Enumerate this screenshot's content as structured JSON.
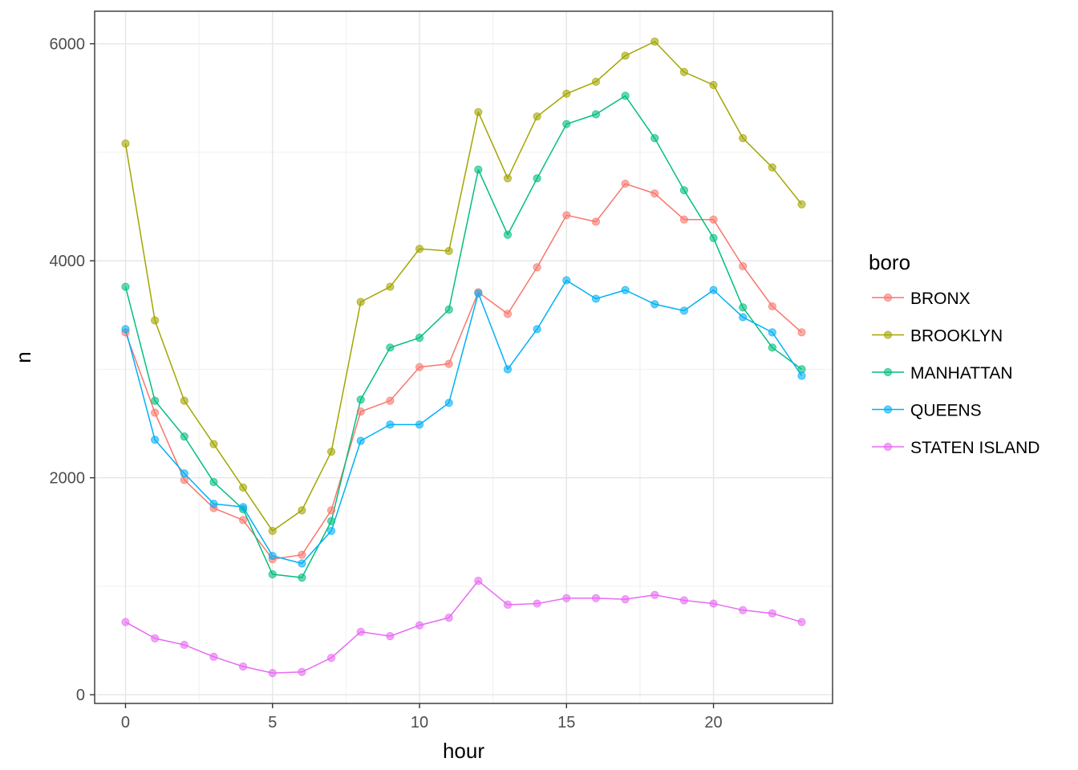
{
  "chart_data": {
    "type": "line",
    "xlabel": "hour",
    "ylabel": "n",
    "xlim": [
      -1.05,
      24.05
    ],
    "ylim": [
      -80,
      6300
    ],
    "x_ticks": [
      0,
      5,
      10,
      15,
      20
    ],
    "y_ticks": [
      0,
      2000,
      4000,
      6000
    ],
    "grid": true,
    "legend_title": "boro",
    "legend_position": "right",
    "x": [
      0,
      1,
      2,
      3,
      4,
      5,
      6,
      7,
      8,
      9,
      10,
      11,
      12,
      13,
      14,
      15,
      16,
      17,
      18,
      19,
      20,
      21,
      22,
      23
    ],
    "series": [
      {
        "name": "BRONX",
        "color": "#F8766D",
        "values": [
          3340,
          2600,
          1980,
          1720,
          1610,
          1250,
          1290,
          1700,
          2610,
          2710,
          3020,
          3050,
          3710,
          3510,
          3940,
          4420,
          4360,
          4710,
          4620,
          4380,
          4380,
          3950,
          3580,
          3340
        ]
      },
      {
        "name": "BROOKLYN",
        "color": "#A3A500",
        "values": [
          5080,
          3450,
          2710,
          2310,
          1910,
          1510,
          1700,
          2240,
          3620,
          3760,
          4110,
          4090,
          5370,
          4760,
          5330,
          5540,
          5650,
          5890,
          6020,
          5740,
          5620,
          5130,
          4860,
          4520
        ]
      },
      {
        "name": "MANHATTAN",
        "color": "#00BF7D",
        "values": [
          3760,
          2710,
          2380,
          1960,
          1710,
          1110,
          1080,
          1600,
          2720,
          3200,
          3290,
          3550,
          4840,
          4240,
          4760,
          5260,
          5350,
          5520,
          5130,
          4650,
          4210,
          3570,
          3200,
          3000
        ]
      },
      {
        "name": "QUEENS",
        "color": "#00B0F6",
        "values": [
          3370,
          2350,
          2040,
          1760,
          1730,
          1280,
          1210,
          1510,
          2340,
          2490,
          2490,
          2690,
          3700,
          3000,
          3370,
          3820,
          3650,
          3730,
          3600,
          3540,
          3730,
          3480,
          3340,
          2940
        ]
      },
      {
        "name": "STATEN ISLAND",
        "color": "#E76BF3",
        "values": [
          670,
          520,
          460,
          350,
          260,
          200,
          210,
          340,
          580,
          540,
          640,
          710,
          1050,
          830,
          840,
          890,
          890,
          880,
          920,
          870,
          840,
          780,
          750,
          670
        ]
      }
    ]
  }
}
